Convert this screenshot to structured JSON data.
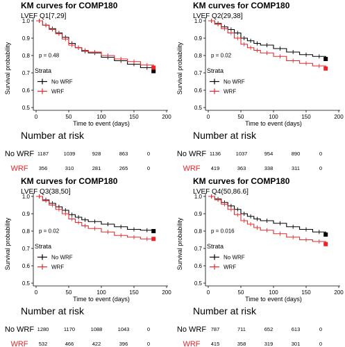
{
  "chart_data": [
    {
      "type": "line",
      "title": "KM curves for COMP180",
      "subtitle": "LVEF Q1[7,29]",
      "xlabel": "Time to event (days)",
      "ylabel": "Survival probability",
      "xlim": [
        0,
        200
      ],
      "ylim": [
        0.5,
        1.0
      ],
      "xticks": [
        "0",
        "50",
        "100",
        "150",
        "200"
      ],
      "yticks": [
        "0.5",
        "0.6",
        "0.7",
        "0.8",
        "0.9",
        "1.0"
      ],
      "pvalue": "p = 0.48",
      "legend_title": "Strata",
      "series": [
        {
          "name": "No WRF",
          "color": "#000000",
          "points": [
            [
              0,
              1.0
            ],
            [
              10,
              0.975
            ],
            [
              20,
              0.955
            ],
            [
              30,
              0.93
            ],
            [
              40,
              0.905
            ],
            [
              50,
              0.87
            ],
            [
              60,
              0.845
            ],
            [
              70,
              0.825
            ],
            [
              80,
              0.815
            ],
            [
              100,
              0.79
            ],
            [
              120,
              0.77
            ],
            [
              140,
              0.75
            ],
            [
              160,
              0.73
            ],
            [
              180,
              0.71
            ]
          ]
        },
        {
          "name": "WRF",
          "color": "#e8262a",
          "points": [
            [
              0,
              1.0
            ],
            [
              10,
              0.975
            ],
            [
              20,
              0.95
            ],
            [
              30,
              0.925
            ],
            [
              40,
              0.895
            ],
            [
              50,
              0.86
            ],
            [
              60,
              0.845
            ],
            [
              70,
              0.83
            ],
            [
              80,
              0.82
            ],
            [
              100,
              0.8
            ],
            [
              120,
              0.78
            ],
            [
              140,
              0.765
            ],
            [
              160,
              0.745
            ],
            [
              180,
              0.73
            ]
          ]
        }
      ],
      "risk_table": {
        "title": "Number at risk",
        "rows": [
          {
            "label": "No WRF",
            "color": "#000000",
            "values": [
              "1187",
              "1039",
              "928",
              "863",
              "0"
            ]
          },
          {
            "label": "WRF",
            "color": "#e8262a",
            "values": [
              "356",
              "310",
              "281",
              "265",
              "0"
            ]
          }
        ]
      }
    },
    {
      "type": "line",
      "title": "KM curves for COMP180",
      "subtitle": "LVEF Q2(29,38]",
      "xlabel": "Time to event (days)",
      "ylabel": "Survival probability",
      "xlim": [
        0,
        200
      ],
      "ylim": [
        0.5,
        1.0
      ],
      "xticks": [
        "0",
        "50",
        "100",
        "150",
        "200"
      ],
      "yticks": [
        "0.5",
        "0.6",
        "0.7",
        "0.8",
        "0.9",
        "1.0"
      ],
      "pvalue": "p = 0.02",
      "legend_title": "Strata",
      "series": [
        {
          "name": "No WRF",
          "color": "#000000",
          "points": [
            [
              0,
              1.0
            ],
            [
              10,
              0.985
            ],
            [
              20,
              0.965
            ],
            [
              30,
              0.95
            ],
            [
              40,
              0.93
            ],
            [
              50,
              0.9
            ],
            [
              60,
              0.885
            ],
            [
              70,
              0.87
            ],
            [
              80,
              0.86
            ],
            [
              100,
              0.84
            ],
            [
              120,
              0.82
            ],
            [
              140,
              0.805
            ],
            [
              160,
              0.795
            ],
            [
              180,
              0.78
            ]
          ]
        },
        {
          "name": "WRF",
          "color": "#e8262a",
          "points": [
            [
              0,
              1.0
            ],
            [
              10,
              0.98
            ],
            [
              20,
              0.955
            ],
            [
              30,
              0.93
            ],
            [
              40,
              0.9
            ],
            [
              50,
              0.865
            ],
            [
              60,
              0.845
            ],
            [
              70,
              0.83
            ],
            [
              80,
              0.815
            ],
            [
              100,
              0.795
            ],
            [
              120,
              0.77
            ],
            [
              140,
              0.755
            ],
            [
              160,
              0.74
            ],
            [
              180,
              0.725
            ]
          ]
        }
      ],
      "risk_table": {
        "title": "Number at risk",
        "rows": [
          {
            "label": "No WRF",
            "color": "#000000",
            "values": [
              "1136",
              "1037",
              "954",
              "890",
              "0"
            ]
          },
          {
            "label": "WRF",
            "color": "#e8262a",
            "values": [
              "419",
              "363",
              "338",
              "311",
              "0"
            ]
          }
        ]
      }
    },
    {
      "type": "line",
      "title": "KM curves for COMP180",
      "subtitle": "LVEF Q3(38,50]",
      "xlabel": "Time to event (days)",
      "ylabel": "Survival probability",
      "xlim": [
        0,
        200
      ],
      "ylim": [
        0.5,
        1.0
      ],
      "xticks": [
        "0",
        "50",
        "100",
        "150",
        "200"
      ],
      "yticks": [
        "0.5",
        "0.6",
        "0.7",
        "0.8",
        "0.9",
        "1.0"
      ],
      "pvalue": "p = 0.02",
      "legend_title": "Strata",
      "series": [
        {
          "name": "No WRF",
          "color": "#000000",
          "points": [
            [
              0,
              1.0
            ],
            [
              10,
              0.98
            ],
            [
              20,
              0.96
            ],
            [
              30,
              0.94
            ],
            [
              40,
              0.92
            ],
            [
              50,
              0.895
            ],
            [
              60,
              0.88
            ],
            [
              70,
              0.865
            ],
            [
              80,
              0.855
            ],
            [
              100,
              0.84
            ],
            [
              120,
              0.825
            ],
            [
              140,
              0.81
            ],
            [
              160,
              0.805
            ],
            [
              180,
              0.8
            ]
          ]
        },
        {
          "name": "WRF",
          "color": "#e8262a",
          "points": [
            [
              0,
              1.0
            ],
            [
              10,
              0.975
            ],
            [
              20,
              0.95
            ],
            [
              30,
              0.925
            ],
            [
              40,
              0.9
            ],
            [
              50,
              0.87
            ],
            [
              60,
              0.85
            ],
            [
              70,
              0.83
            ],
            [
              80,
              0.815
            ],
            [
              100,
              0.795
            ],
            [
              120,
              0.775
            ],
            [
              140,
              0.765
            ],
            [
              160,
              0.755
            ],
            [
              180,
              0.755
            ]
          ]
        }
      ],
      "risk_table": {
        "title": "Number at risk",
        "rows": [
          {
            "label": "No WRF",
            "color": "#000000",
            "values": [
              "1280",
              "1170",
              "1088",
              "1043",
              "0"
            ]
          },
          {
            "label": "WRF",
            "color": "#e8262a",
            "values": [
              "532",
              "466",
              "422",
              "396",
              "0"
            ]
          }
        ]
      }
    },
    {
      "type": "line",
      "title": "KM curves for COMP180",
      "subtitle": "LVEF Q4(50,86.6]",
      "xlabel": "Time to event (days)",
      "ylabel": "Survival probability",
      "xlim": [
        0,
        200
      ],
      "ylim": [
        0.5,
        1.0
      ],
      "xticks": [
        "0",
        "50",
        "100",
        "150",
        "200"
      ],
      "yticks": [
        "0.5",
        "0.6",
        "0.7",
        "0.8",
        "0.9",
        "1.0"
      ],
      "pvalue": "p = 0.016",
      "legend_title": "Strata",
      "series": [
        {
          "name": "No WRF",
          "color": "#000000",
          "points": [
            [
              0,
              1.0
            ],
            [
              10,
              0.985
            ],
            [
              20,
              0.965
            ],
            [
              30,
              0.945
            ],
            [
              40,
              0.925
            ],
            [
              50,
              0.9
            ],
            [
              60,
              0.885
            ],
            [
              70,
              0.87
            ],
            [
              80,
              0.86
            ],
            [
              100,
              0.845
            ],
            [
              120,
              0.825
            ],
            [
              140,
              0.81
            ],
            [
              160,
              0.795
            ],
            [
              180,
              0.78
            ]
          ]
        },
        {
          "name": "WRF",
          "color": "#e8262a",
          "points": [
            [
              0,
              1.0
            ],
            [
              10,
              0.98
            ],
            [
              20,
              0.955
            ],
            [
              30,
              0.925
            ],
            [
              40,
              0.895
            ],
            [
              50,
              0.86
            ],
            [
              60,
              0.84
            ],
            [
              70,
              0.82
            ],
            [
              80,
              0.805
            ],
            [
              100,
              0.785
            ],
            [
              120,
              0.765
            ],
            [
              140,
              0.75
            ],
            [
              160,
              0.74
            ],
            [
              180,
              0.725
            ]
          ]
        }
      ],
      "risk_table": {
        "title": "Number at risk",
        "rows": [
          {
            "label": "No WRF",
            "color": "#000000",
            "values": [
              "787",
              "711",
              "652",
              "613",
              "0"
            ]
          },
          {
            "label": "WRF",
            "color": "#e8262a",
            "values": [
              "415",
              "358",
              "319",
              "301",
              "0"
            ]
          }
        ]
      }
    }
  ]
}
